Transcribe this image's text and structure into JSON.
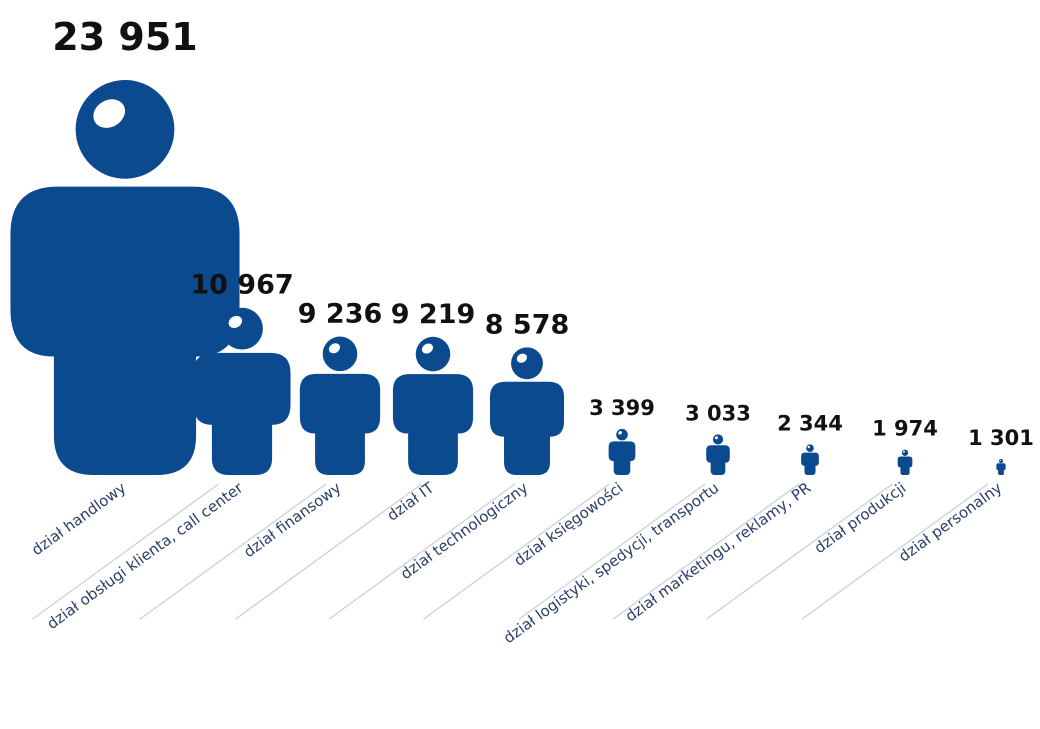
{
  "chart_data": {
    "type": "bar",
    "categories": [
      "dział handlowy",
      "dział obsługi klienta, call center",
      "dział finansowy",
      "dział IT",
      "dział technologiczny",
      "dział księgowości",
      "dział logistyki, spedycji, transportu",
      "dział marketingu, reklamy, PR",
      "dział produkcji",
      "dział personalny"
    ],
    "values": [
      23951,
      10967,
      9236,
      9219,
      8578,
      3399,
      3033,
      2344,
      1974,
      1301
    ],
    "value_labels": [
      "23 951",
      "10 967",
      "9 236",
      "9 219",
      "8 578",
      "3 399",
      "3 033",
      "2 344",
      "1 974",
      "1 301"
    ],
    "mark": "person-icon",
    "title": "",
    "xlabel": "",
    "ylabel": "",
    "grid": false,
    "colors": {
      "icon": "#0b4a8f",
      "highlight": "#ffffff",
      "value_text": "#111111",
      "category_text": "#2a3d6a",
      "separator": "#d2d5dc"
    }
  }
}
